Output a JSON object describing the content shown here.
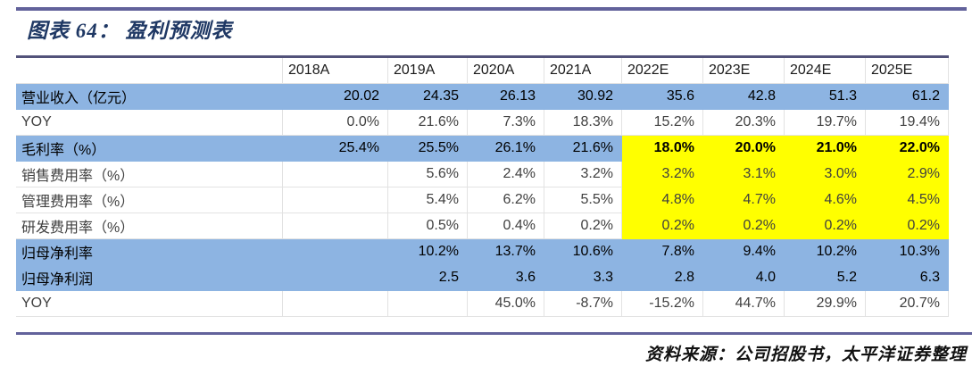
{
  "title": "图表 64：  盈利预测表",
  "source": "资料来源：公司招股书，太平洋证券整理",
  "colors": {
    "accent_rule": "#62629B",
    "table_top_border": "#52527A",
    "highlight_blue": "#8DB4E2",
    "highlight_yellow": "#FFFF00",
    "title_navy": "#1F3864"
  },
  "table": {
    "columns": [
      "",
      "2018A",
      "2019A",
      "2020A",
      "2021A",
      "2022E",
      "2023E",
      "2024E",
      "2025E"
    ],
    "rows": [
      {
        "label": "营业收入（亿元）",
        "style": "blue",
        "values": [
          "20.02",
          "24.35",
          "26.13",
          "30.92",
          "35.6",
          "42.8",
          "51.3",
          "61.2"
        ]
      },
      {
        "label": "YOY",
        "style": "plain",
        "values": [
          "0.0%",
          "21.6%",
          "7.3%",
          "18.3%",
          "15.2%",
          "20.3%",
          "19.7%",
          "19.4%"
        ]
      },
      {
        "label": "毛利率（%）",
        "style": "blue-yellow",
        "values": [
          "25.4%",
          "25.5%",
          "26.1%",
          "21.6%",
          "18.0%",
          "20.0%",
          "21.0%",
          "22.0%"
        ]
      },
      {
        "label": "销售费用率（%）",
        "style": "plain-yellow",
        "values": [
          "",
          "5.6%",
          "2.4%",
          "3.2%",
          "3.2%",
          "3.1%",
          "3.0%",
          "2.9%"
        ]
      },
      {
        "label": "管理费用率（%）",
        "style": "plain-yellow",
        "values": [
          "",
          "5.4%",
          "6.2%",
          "5.5%",
          "4.8%",
          "4.7%",
          "4.6%",
          "4.5%"
        ]
      },
      {
        "label": "研发费用率（%）",
        "style": "plain-yellow",
        "values": [
          "",
          "0.5%",
          "0.4%",
          "0.2%",
          "0.2%",
          "0.2%",
          "0.2%",
          "0.2%"
        ]
      },
      {
        "label": "归母净利率",
        "style": "blue",
        "values": [
          "",
          "10.2%",
          "13.7%",
          "10.6%",
          "7.8%",
          "9.4%",
          "10.2%",
          "10.3%"
        ]
      },
      {
        "label": "归母净利润",
        "style": "blue",
        "values": [
          "",
          "2.5",
          "3.6",
          "3.3",
          "2.8",
          "4.0",
          "5.2",
          "6.3"
        ]
      },
      {
        "label": "YOY",
        "style": "plain",
        "values": [
          "",
          "",
          "45.0%",
          "-8.7%",
          "-15.2%",
          "44.7%",
          "29.9%",
          "20.7%"
        ]
      }
    ]
  }
}
